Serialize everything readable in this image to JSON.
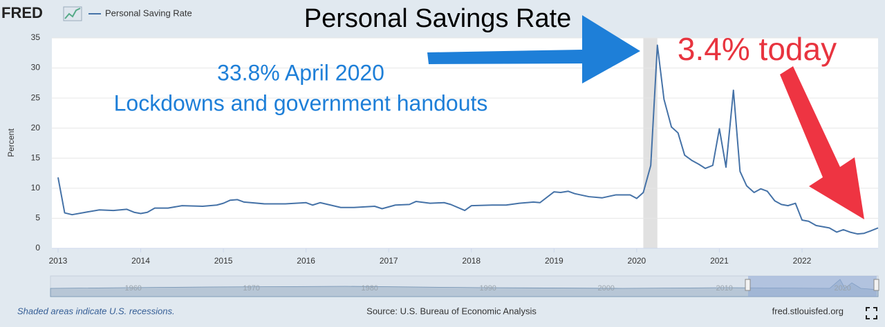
{
  "chart_data": {
    "type": "line",
    "brand": "FRED",
    "title": "Personal Savings Rate",
    "annotations": [
      "33.8% April 2020",
      "Lockdowns and government handouts",
      "3.4% today"
    ],
    "y_label": "Percent",
    "note": "Shaded areas indicate U.S. recessions.",
    "source": "Source: U.S. Bureau of Economic Analysis",
    "url": "fred.stlouisfed.org",
    "navigator_ticks": [
      1960,
      1970,
      1980,
      1990,
      2000,
      2010,
      2020
    ],
    "recessions": [
      [
        2020.08,
        2020.25
      ]
    ],
    "x": [
      2013.0,
      2013.08,
      2013.17,
      2013.33,
      2013.5,
      2013.67,
      2013.83,
      2013.92,
      2014.0,
      2014.08,
      2014.17,
      2014.33,
      2014.5,
      2014.75,
      2014.92,
      2015.0,
      2015.08,
      2015.17,
      2015.25,
      2015.5,
      2015.75,
      2016.0,
      2016.08,
      2016.17,
      2016.42,
      2016.58,
      2016.83,
      2016.92,
      2017.08,
      2017.25,
      2017.33,
      2017.5,
      2017.67,
      2017.75,
      2017.92,
      2018.0,
      2018.25,
      2018.42,
      2018.58,
      2018.75,
      2018.83,
      2019.0,
      2019.08,
      2019.17,
      2019.25,
      2019.42,
      2019.58,
      2019.75,
      2019.92,
      2020.0,
      2020.08,
      2020.17,
      2020.25,
      2020.33,
      2020.42,
      2020.5,
      2020.58,
      2020.67,
      2020.75,
      2020.83,
      2020.92,
      2021.0,
      2021.08,
      2021.17,
      2021.25,
      2021.33,
      2021.42,
      2021.5,
      2021.58,
      2021.67,
      2021.75,
      2021.83,
      2021.92,
      2022.0,
      2022.08,
      2022.17,
      2022.25,
      2022.33,
      2022.42,
      2022.5,
      2022.58,
      2022.67,
      2022.75,
      2022.83,
      2022.92
    ],
    "series": [
      {
        "name": "Personal Saving Rate",
        "color": "#4572a7",
        "values": [
          11.8,
          5.9,
          5.6,
          6.0,
          6.4,
          6.3,
          6.5,
          6.0,
          5.8,
          6.0,
          6.7,
          6.7,
          7.1,
          7.0,
          7.2,
          7.5,
          8.0,
          8.1,
          7.7,
          7.4,
          7.4,
          7.6,
          7.2,
          7.6,
          6.8,
          6.8,
          7.0,
          6.6,
          7.2,
          7.3,
          7.8,
          7.5,
          7.6,
          7.3,
          6.3,
          7.1,
          7.2,
          7.2,
          7.5,
          7.7,
          7.6,
          9.4,
          9.3,
          9.5,
          9.1,
          8.6,
          8.4,
          8.9,
          8.9,
          8.3,
          9.3,
          13.8,
          33.8,
          24.8,
          20.2,
          19.2,
          15.5,
          14.6,
          14.0,
          13.3,
          13.8,
          19.9,
          13.5,
          26.3,
          12.8,
          10.4,
          9.3,
          9.9,
          9.5,
          7.9,
          7.3,
          7.1,
          7.5,
          4.7,
          4.5,
          3.8,
          3.6,
          3.4,
          2.7,
          3.1,
          2.7,
          2.4,
          2.5,
          2.9,
          3.4
        ]
      }
    ],
    "xlim": [
      2012.925,
      2022.92
    ],
    "xticks": [
      2013,
      2014,
      2015,
      2016,
      2017,
      2018,
      2019,
      2020,
      2021,
      2022
    ],
    "ylim": [
      0,
      35
    ],
    "yticks": [
      0,
      5,
      10,
      15,
      20,
      25,
      30,
      35
    ],
    "grid": true
  }
}
